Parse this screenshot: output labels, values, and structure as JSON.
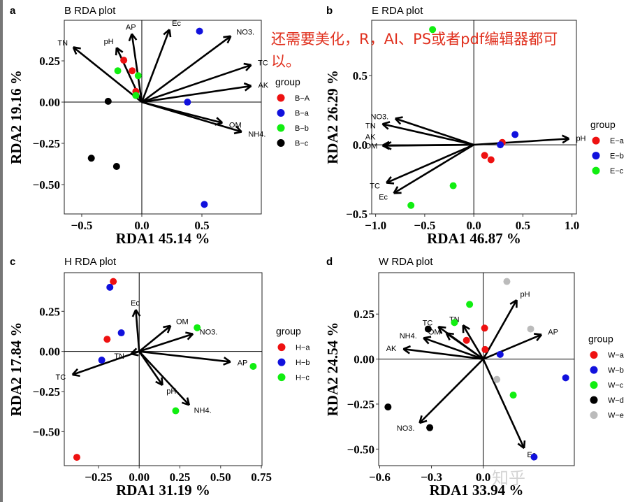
{
  "annotation": {
    "line1": "还需要美化，R，AI、PS或者pdf编辑器都可",
    "line2": "以。",
    "color": "#e0301e"
  },
  "watermark": "知乎",
  "chart_data": [
    {
      "type": "scatter",
      "panel": "a",
      "title": "B RDA plot",
      "xlabel": "RDA1 45.14  %",
      "ylabel": "RDA2 19.16  %",
      "xlim": [
        -0.645,
        0.994
      ],
      "ylim": [
        -0.678,
        0.496
      ],
      "xticks": [
        -0.5,
        0.0,
        0.5
      ],
      "xtick_labels": [
        "−0.5",
        "0.0",
        "0.5"
      ],
      "yticks": [
        -0.5,
        -0.25,
        0,
        0.25
      ],
      "ytick_labels": [
        "−0.50",
        "−0.25",
        "0.00",
        "0.25"
      ],
      "legend_title": "group",
      "legend_placement": "right",
      "series": [
        {
          "name": "B−A",
          "color": "#ee1111",
          "points": [
            [
              -0.15,
              0.254
            ],
            [
              -0.08,
              0.19
            ],
            [
              -0.05,
              0.065
            ]
          ]
        },
        {
          "name": "B−a",
          "color": "#1111dd",
          "points": [
            [
              0.48,
              0.43
            ],
            [
              0.38,
              0.0
            ],
            [
              0.52,
              -0.62
            ]
          ]
        },
        {
          "name": "B−b",
          "color": "#11ee11",
          "points": [
            [
              -0.2,
              0.19
            ],
            [
              -0.03,
              0.16
            ],
            [
              -0.05,
              0.04
            ]
          ]
        },
        {
          "name": "B−c",
          "color": "#000000",
          "points": [
            [
              -0.28,
              0.005
            ],
            [
              -0.42,
              -0.34
            ],
            [
              -0.21,
              -0.39
            ]
          ]
        }
      ],
      "arrows": [
        {
          "label": "TN",
          "x": -0.57,
          "y": 0.333
        },
        {
          "label": "AP",
          "x": -0.083,
          "y": 0.414
        },
        {
          "label": "pH",
          "x": -0.21,
          "y": 0.33
        },
        {
          "label": "Ec",
          "x": 0.23,
          "y": 0.44
        },
        {
          "label": "NO3.",
          "x": 0.74,
          "y": 0.4
        },
        {
          "label": "TC",
          "x": 0.91,
          "y": 0.225
        },
        {
          "label": "AK",
          "x": 0.91,
          "y": 0.098
        },
        {
          "label": "OM",
          "x": 0.67,
          "y": -0.126
        },
        {
          "label": "NH4.",
          "x": 0.83,
          "y": -0.18
        }
      ]
    },
    {
      "type": "scatter",
      "panel": "b",
      "title": "E RDA plot",
      "xlabel": "RDA1 46.87  %",
      "ylabel": "RDA2 26.29  %",
      "xlim": [
        -1.04,
        1.045
      ],
      "ylim": [
        -0.5,
        0.9
      ],
      "xticks": [
        -1,
        -0.5,
        0,
        0.5,
        1
      ],
      "xtick_labels": [
        "−1.0",
        "−0.5",
        "0.0",
        "0.5",
        "1.0"
      ],
      "yticks": [
        -0.5,
        0,
        0.5
      ],
      "ytick_labels": [
        "−0.5",
        "0.0",
        "0.5"
      ],
      "legend_title": "group",
      "legend_placement": "right",
      "series": [
        {
          "name": "E−a",
          "color": "#ee1111",
          "points": [
            [
              0.29,
              0.017
            ],
            [
              0.11,
              -0.077
            ],
            [
              0.175,
              -0.108
            ]
          ]
        },
        {
          "name": "E−b",
          "color": "#1111dd",
          "points": [
            [
              0.42,
              0.074
            ],
            [
              0.27,
              0.0
            ]
          ]
        },
        {
          "name": "E−c",
          "color": "#11ee11",
          "points": [
            [
              -0.42,
              0.833
            ],
            [
              -0.21,
              -0.296
            ],
            [
              -0.64,
              -0.438
            ]
          ]
        }
      ],
      "arrows": [
        {
          "label": "NO3.",
          "x": -0.8,
          "y": 0.19
        },
        {
          "label": "TN",
          "x": -0.93,
          "y": 0.15
        },
        {
          "label": "OM",
          "x": -0.91,
          "y": -0.007
        },
        {
          "label": "AK",
          "x": -0.93,
          "y": -0.005
        },
        {
          "label": "TC",
          "x": -0.89,
          "y": -0.275
        },
        {
          "label": "Ec",
          "x": -0.815,
          "y": -0.35
        },
        {
          "label": "pH",
          "x": 0.97,
          "y": 0.044
        }
      ]
    },
    {
      "type": "scatter",
      "panel": "c",
      "title": "H RDA plot",
      "xlabel": "RDA1 31.19  %",
      "ylabel": "RDA2 17.84  %",
      "xlim": [
        -0.46,
        0.754
      ],
      "ylim": [
        -0.712,
        0.491
      ],
      "xticks": [
        -0.25,
        0,
        0.25,
        0.5,
        0.75
      ],
      "xtick_labels": [
        "−0.25",
        "0.00",
        "0.25",
        "0.50",
        "0.75"
      ],
      "yticks": [
        -0.5,
        -0.25,
        0,
        0.25
      ],
      "ytick_labels": [
        "−0.50",
        "−0.25",
        "0.00",
        "0.25"
      ],
      "legend_title": "group",
      "legend_placement": "right",
      "series": [
        {
          "name": "H−a",
          "color": "#ee1111",
          "points": [
            [
              -0.159,
              0.436
            ],
            [
              -0.197,
              0.076
            ],
            [
              -0.383,
              -0.66
            ]
          ]
        },
        {
          "name": "H−b",
          "color": "#1111dd",
          "points": [
            [
              -0.18,
              0.4
            ],
            [
              -0.11,
              0.116
            ],
            [
              -0.23,
              -0.054
            ]
          ]
        },
        {
          "name": "H−c",
          "color": "#11ee11",
          "points": [
            [
              0.356,
              0.148
            ],
            [
              0.7,
              -0.093
            ],
            [
              0.224,
              -0.37
            ]
          ]
        }
      ],
      "arrows": [
        {
          "label": "Ec",
          "x": -0.021,
          "y": 0.26
        },
        {
          "label": "OM",
          "x": 0.193,
          "y": 0.16
        },
        {
          "label": "NO3.",
          "x": 0.33,
          "y": 0.109
        },
        {
          "label": "AP",
          "x": 0.56,
          "y": -0.065
        },
        {
          "label": "NH4.",
          "x": 0.307,
          "y": -0.334
        },
        {
          "label": "pH",
          "x": 0.143,
          "y": -0.21
        },
        {
          "label": "TN",
          "x": -0.05,
          "y": -0.015
        },
        {
          "label": "TC",
          "x": -0.41,
          "y": -0.145
        }
      ]
    },
    {
      "type": "scatter",
      "panel": "d",
      "title": "W RDA plot",
      "xlabel": "RDA1 33.94  %",
      "ylabel": "RDA2 24.54  %",
      "xlim": [
        -0.606,
        0.528
      ],
      "ylim": [
        -0.592,
        0.48
      ],
      "xticks": [
        -0.6,
        -0.3,
        0
      ],
      "xtick_labels": [
        "−0.6",
        "−0.3",
        "0.0"
      ],
      "yticks": [
        -0.5,
        -0.25,
        0,
        0.25
      ],
      "ytick_labels": [
        "−0.50",
        "−0.25",
        "0.00",
        "0.25"
      ],
      "legend_title": "group",
      "legend_placement": "right",
      "series": [
        {
          "name": "W−a",
          "color": "#ee1111",
          "points": [
            [
              0.008,
              0.172
            ],
            [
              -0.097,
              0.104
            ],
            [
              0.011,
              0.053
            ]
          ]
        },
        {
          "name": "W−b",
          "color": "#1111dd",
          "points": [
            [
              0.098,
              0.026
            ],
            [
              0.478,
              -0.104
            ],
            [
              0.295,
              -0.544
            ]
          ]
        },
        {
          "name": "W−c",
          "color": "#11ee11",
          "points": [
            [
              -0.079,
              0.304
            ],
            [
              -0.167,
              0.203
            ],
            [
              0.174,
              -0.2
            ]
          ]
        },
        {
          "name": "W−d",
          "color": "#000000",
          "points": [
            [
              -0.319,
              0.167
            ],
            [
              -0.552,
              -0.266
            ],
            [
              -0.31,
              -0.381
            ]
          ]
        },
        {
          "name": "W−e",
          "color": "#bbbbbb",
          "points": [
            [
              0.137,
              0.431
            ],
            [
              0.275,
              0.167
            ],
            [
              0.079,
              -0.113
            ]
          ]
        }
      ],
      "arrows": [
        {
          "label": "pH",
          "x": 0.194,
          "y": 0.328
        },
        {
          "label": "AP",
          "x": 0.338,
          "y": 0.136
        },
        {
          "label": "TN",
          "x": -0.117,
          "y": 0.188
        },
        {
          "label": "TC",
          "x": -0.26,
          "y": 0.18
        },
        {
          "label": "OM",
          "x": -0.214,
          "y": 0.144
        },
        {
          "label": "NH4.",
          "x": -0.346,
          "y": 0.117
        },
        {
          "label": "AK",
          "x": -0.463,
          "y": 0.056
        },
        {
          "label": "NO3.",
          "x": -0.369,
          "y": -0.355
        },
        {
          "label": "Ec",
          "x": 0.237,
          "y": -0.495
        }
      ]
    }
  ]
}
